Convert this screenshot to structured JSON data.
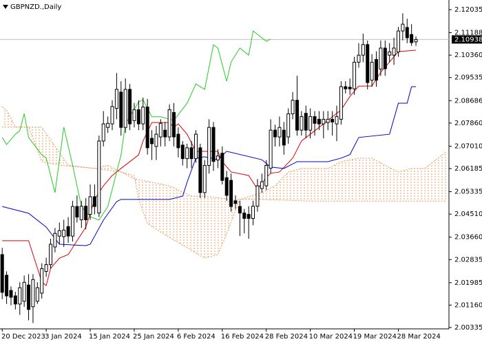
{
  "chart_data": {
    "type": "candlestick",
    "title": "GBPNZD.,Daily",
    "categories": [
      "20 Dec 2023",
      null,
      null,
      null,
      null,
      null,
      null,
      null,
      null,
      null,
      "3 Jan 2024",
      null,
      null,
      null,
      null,
      null,
      null,
      null,
      null,
      null,
      "15 Jan 2024",
      null,
      null,
      null,
      null,
      null,
      null,
      null,
      null,
      null,
      "25 Jan 2024",
      null,
      null,
      null,
      null,
      null,
      null,
      null,
      null,
      null,
      "6 Feb 2024",
      null,
      null,
      null,
      null,
      null,
      null,
      null,
      null,
      null,
      "16 Feb 2024",
      null,
      null,
      null,
      null,
      null,
      null,
      null,
      null,
      null,
      "28 Feb 2024",
      null,
      null,
      null,
      null,
      null,
      null,
      null,
      null,
      null,
      "10 Mar 2024",
      null,
      null,
      null,
      null,
      null,
      null,
      null,
      null,
      null,
      "19 Mar 2024",
      null,
      null,
      null,
      null,
      null,
      null,
      null,
      null,
      null,
      "28 Mar 2024",
      null,
      null,
      null,
      null,
      null,
      null,
      null,
      null,
      null,
      null,
      null
    ],
    "open": [
      2.0302,
      2.0226,
      2.017,
      2.015,
      2.012,
      2.013,
      2.019,
      2.011,
      2.013,
      2.016,
      2.024,
      2.0265,
      2.033,
      2.037,
      2.0368,
      2.0405,
      2.037,
      2.0479,
      2.043,
      2.048,
      2.045,
      2.0515,
      2.0455,
      2.072,
      2.077,
      2.0783,
      2.084,
      2.09,
      2.077,
      2.091,
      2.0795,
      2.0835,
      2.0783,
      2.0845,
      2.073,
      2.07,
      2.0735,
      2.076,
      2.0735,
      2.0825,
      2.0745,
      2.0705,
      2.0655,
      2.0695,
      2.0655,
      2.0695,
      2.053,
      2.063,
      2.077,
      2.065,
      2.0675,
      2.0585,
      2.0575,
      2.05,
      2.0479,
      2.0455,
      2.045,
      2.0435,
      2.048,
      2.0545,
      2.0555,
      2.062,
      2.076,
      2.0735,
      2.076,
      2.0735,
      2.082,
      2.087,
      2.076,
      2.0822,
      2.076,
      2.081,
      2.08,
      2.0783,
      2.0788,
      2.08,
      2.0783,
      2.08,
      2.092,
      2.0918,
      2.0912,
      2.101,
      2.1036,
      2.1075,
      2.0944,
      2.102,
      2.0985,
      2.1062,
      2.1036,
      2.1036,
      2.1048,
      2.1125,
      2.1138,
      2.1112,
      2.1085,
      null,
      null,
      null,
      null,
      null,
      null,
      null
    ],
    "close": [
      2.0163,
      2.015,
      2.0145,
      2.012,
      2.018,
      2.02,
      2.01,
      2.021,
      2.018,
      2.025,
      2.0265,
      2.034,
      2.038,
      2.039,
      2.0392,
      2.037,
      2.0479,
      2.044,
      2.048,
      2.043,
      2.0515,
      2.0479,
      2.072,
      2.0783,
      2.0785,
      2.0847,
      2.091,
      2.077,
      2.091,
      2.0783,
      2.0835,
      2.0783,
      2.0845,
      2.0695,
      2.071,
      2.0745,
      2.0785,
      2.0735,
      2.0835,
      2.0735,
      2.0695,
      2.0655,
      2.0695,
      2.0655,
      2.0745,
      2.053,
      2.063,
      2.077,
      2.0645,
      2.0665,
      2.0575,
      2.052,
      2.0479,
      2.049,
      2.0455,
      2.0435,
      2.0435,
      2.048,
      2.0555,
      2.057,
      2.063,
      2.076,
      2.0735,
      2.077,
      2.0705,
      2.082,
      2.087,
      2.076,
      2.081,
      2.076,
      2.081,
      2.0785,
      2.0783,
      2.08,
      2.08,
      2.079,
      2.081,
      2.092,
      2.0912,
      2.0912,
      2.101,
      2.1036,
      2.1075,
      2.0935,
      2.101,
      2.0944,
      2.1062,
      2.0986,
      2.1048,
      2.1062,
      2.1125,
      2.115,
      2.11,
      2.1082,
      2.10938,
      null,
      null,
      null,
      null,
      null,
      null,
      null
    ],
    "high": [
      2.0327,
      2.024,
      2.0185,
      2.0165,
      2.02,
      2.0225,
      2.023,
      2.023,
      2.02,
      2.027,
      2.029,
      2.036,
      2.04,
      2.042,
      2.043,
      2.044,
      2.05,
      2.052,
      2.05,
      2.051,
      2.056,
      2.056,
      2.074,
      2.083,
      2.081,
      2.087,
      2.097,
      2.094,
      2.095,
      2.093,
      2.086,
      2.087,
      2.088,
      2.0875,
      2.076,
      2.0775,
      2.08,
      2.079,
      2.0855,
      2.086,
      2.077,
      2.072,
      2.071,
      2.072,
      2.076,
      2.071,
      2.065,
      2.08,
      2.079,
      2.069,
      2.07,
      2.061,
      2.06,
      2.052,
      2.05,
      2.047,
      2.048,
      2.05,
      2.058,
      2.06,
      2.065,
      2.08,
      2.078,
      2.081,
      2.079,
      2.084,
      2.09,
      2.096,
      2.083,
      2.085,
      2.084,
      2.083,
      2.083,
      2.083,
      2.083,
      2.083,
      2.085,
      2.094,
      2.094,
      2.095,
      2.103,
      2.108,
      2.1115,
      2.109,
      2.104,
      2.105,
      2.109,
      2.109,
      2.108,
      2.11,
      2.114,
      2.119,
      2.117,
      2.115,
      2.1105,
      null,
      null,
      null,
      null,
      null,
      null,
      null
    ],
    "low": [
      2.0138,
      2.012,
      2.0115,
      2.01,
      2.008,
      2.011,
      2.006,
      2.005,
      2.012,
      2.014,
      2.022,
      2.025,
      2.031,
      2.034,
      2.033,
      2.0345,
      2.035,
      2.042,
      2.04,
      2.0395,
      2.043,
      2.045,
      2.044,
      2.07,
      2.075,
      2.076,
      2.08,
      2.074,
      2.075,
      2.076,
      2.077,
      2.076,
      2.076,
      2.067,
      2.065,
      2.065,
      2.07,
      2.07,
      2.072,
      2.07,
      2.066,
      2.063,
      2.062,
      2.062,
      2.064,
      2.051,
      2.051,
      2.06,
      2.061,
      2.062,
      2.056,
      2.05,
      2.046,
      2.047,
      2.037,
      2.038,
      2.036,
      2.041,
      2.046,
      2.053,
      2.054,
      2.06,
      2.07,
      2.07,
      2.067,
      2.071,
      2.08,
      2.074,
      2.074,
      2.073,
      2.073,
      2.074,
      2.076,
      2.073,
      2.076,
      2.074,
      2.072,
      2.078,
      2.0895,
      2.089,
      2.089,
      2.099,
      2.101,
      2.091,
      2.092,
      2.092,
      2.096,
      2.096,
      2.101,
      2.1,
      2.103,
      2.109,
      2.108,
      2.107,
      2.107,
      null,
      null,
      null,
      null,
      null,
      null,
      null
    ],
    "up_color": "#ffffff",
    "down_color": "#000000",
    "outline_color": "#000000",
    "series": [
      {
        "color": "#dd0000",
        "x": [
          0,
          6,
          9,
          10,
          11,
          13,
          15,
          17,
          19,
          21,
          23,
          25,
          27,
          31,
          32,
          34,
          38,
          39,
          40,
          42,
          44,
          49,
          50,
          52,
          56,
          58,
          60,
          61,
          63,
          66,
          68,
          70,
          73,
          75,
          77,
          79,
          81,
          84,
          86,
          88,
          90,
          94
        ],
        "values": [
          2.0353,
          2.0353,
          2.0201,
          2.0188,
          2.0251,
          2.0289,
          2.0302,
          2.0353,
          2.0403,
          2.0505,
          2.0555,
          2.0593,
          2.0619,
          2.0669,
          2.072,
          2.0788,
          2.0788,
          2.0771,
          2.0783,
          2.0745,
          2.0682,
          2.0682,
          2.0644,
          2.0606,
          2.0593,
          2.0543,
          2.0586,
          2.0601,
          2.0606,
          2.0657,
          2.072,
          2.0745,
          2.0783,
          2.0809,
          2.0834,
          2.0884,
          2.0922,
          2.0922,
          2.0973,
          2.1011,
          2.1049,
          2.1054
        ]
      },
      {
        "color": "#0000cc",
        "x": [
          0,
          6,
          10,
          13,
          19,
          20,
          23,
          26,
          27,
          38,
          41,
          42,
          44,
          46,
          49,
          51,
          59,
          61,
          64,
          67,
          74,
          77,
          79,
          81,
          88,
          90,
          92,
          93,
          94
        ],
        "values": [
          2.0479,
          2.0454,
          2.0403,
          2.034,
          2.0335,
          2.034,
          2.0429,
          2.0497,
          2.0505,
          2.0505,
          2.0517,
          2.0568,
          2.0657,
          2.0662,
          2.0651,
          2.0682,
          2.0651,
          2.0624,
          2.0619,
          2.0644,
          2.0644,
          2.0657,
          2.067,
          2.0733,
          2.0745,
          2.0859,
          2.0859,
          2.092,
          2.092
        ]
      },
      {
        "color": "#22cc22",
        "x": [
          0,
          1,
          3,
          4,
          5,
          6,
          9,
          10,
          12,
          14,
          16,
          18,
          20,
          22,
          24,
          27,
          28,
          31,
          32,
          34,
          36,
          39,
          42,
          44,
          46,
          48,
          49,
          51,
          52,
          54,
          56,
          57,
          60,
          61
        ],
        "values": [
          2.0733,
          2.0707,
          2.0745,
          2.0758,
          2.0821,
          2.0733,
          2.0669,
          2.0657,
          2.053,
          2.0771,
          2.0631,
          2.0479,
          2.0441,
          2.0429,
          2.0479,
          2.0669,
          2.0783,
          2.0864,
          2.0872,
          2.0809,
          2.0809,
          2.0796,
          2.0859,
          2.093,
          2.091,
          2.1074,
          2.1062,
          2.094,
          2.1011,
          2.1062,
          2.1036,
          2.1125,
          2.1087,
          2.1095
        ]
      }
    ],
    "cloud": {
      "color": "#e8985e",
      "span_a": {
        "x": [
          0,
          1,
          3,
          6,
          9,
          15,
          21,
          24,
          27,
          30,
          31,
          33,
          38,
          46,
          49,
          51,
          54,
          59,
          62,
          65,
          68,
          74,
          77,
          81,
          84,
          87,
          90,
          93,
          96,
          99,
          101
        ],
        "values": [
          2.0846,
          2.0834,
          2.0771,
          2.0771,
          2.0771,
          2.0631,
          2.0619,
          2.0631,
          2.0606,
          2.0593,
          2.0505,
          2.0416,
          2.0365,
          2.0289,
          2.0302,
          2.0378,
          2.0505,
          2.053,
          2.0555,
          2.0606,
          2.0619,
          2.0619,
          2.0644,
          2.0657,
          2.0657,
          2.0631,
          2.0606,
          2.0619,
          2.0619,
          2.0657,
          2.0682
        ]
      },
      "span_b": {
        "x": [
          0,
          6,
          9,
          13,
          21,
          27,
          30,
          38,
          43,
          46,
          52,
          59,
          70,
          77,
          87,
          101
        ],
        "values": [
          2.0771,
          2.0771,
          2.0644,
          2.0631,
          2.0619,
          2.0606,
          2.0581,
          2.0555,
          2.0517,
          2.0517,
          2.0505,
          2.0505,
          2.0499,
          2.0499,
          2.0499,
          2.0499
        ]
      }
    },
    "ylim": [
      2.00285,
      2.1239
    ],
    "yticks": [
      2.12035,
      2.11188,
      {
        "value": 2.1036,
        "label": "2.10360"
      },
      2.09535,
      2.08686,
      {
        "value": 2.0786,
        "label": "2.07860"
      },
      {
        "value": 2.0701,
        "label": "2.07010"
      },
      2.06185,
      2.05335,
      {
        "value": 2.0451,
        "label": "2.04510"
      },
      {
        "value": 2.0366,
        "label": "2.03660"
      },
      2.02835,
      2.01985,
      {
        "value": 2.0116,
        "label": "2.01160"
      },
      2.00335
    ],
    "last_price": 2.10938,
    "last_price_color": "#000000",
    "price_line_color": "#c0c0c0"
  }
}
